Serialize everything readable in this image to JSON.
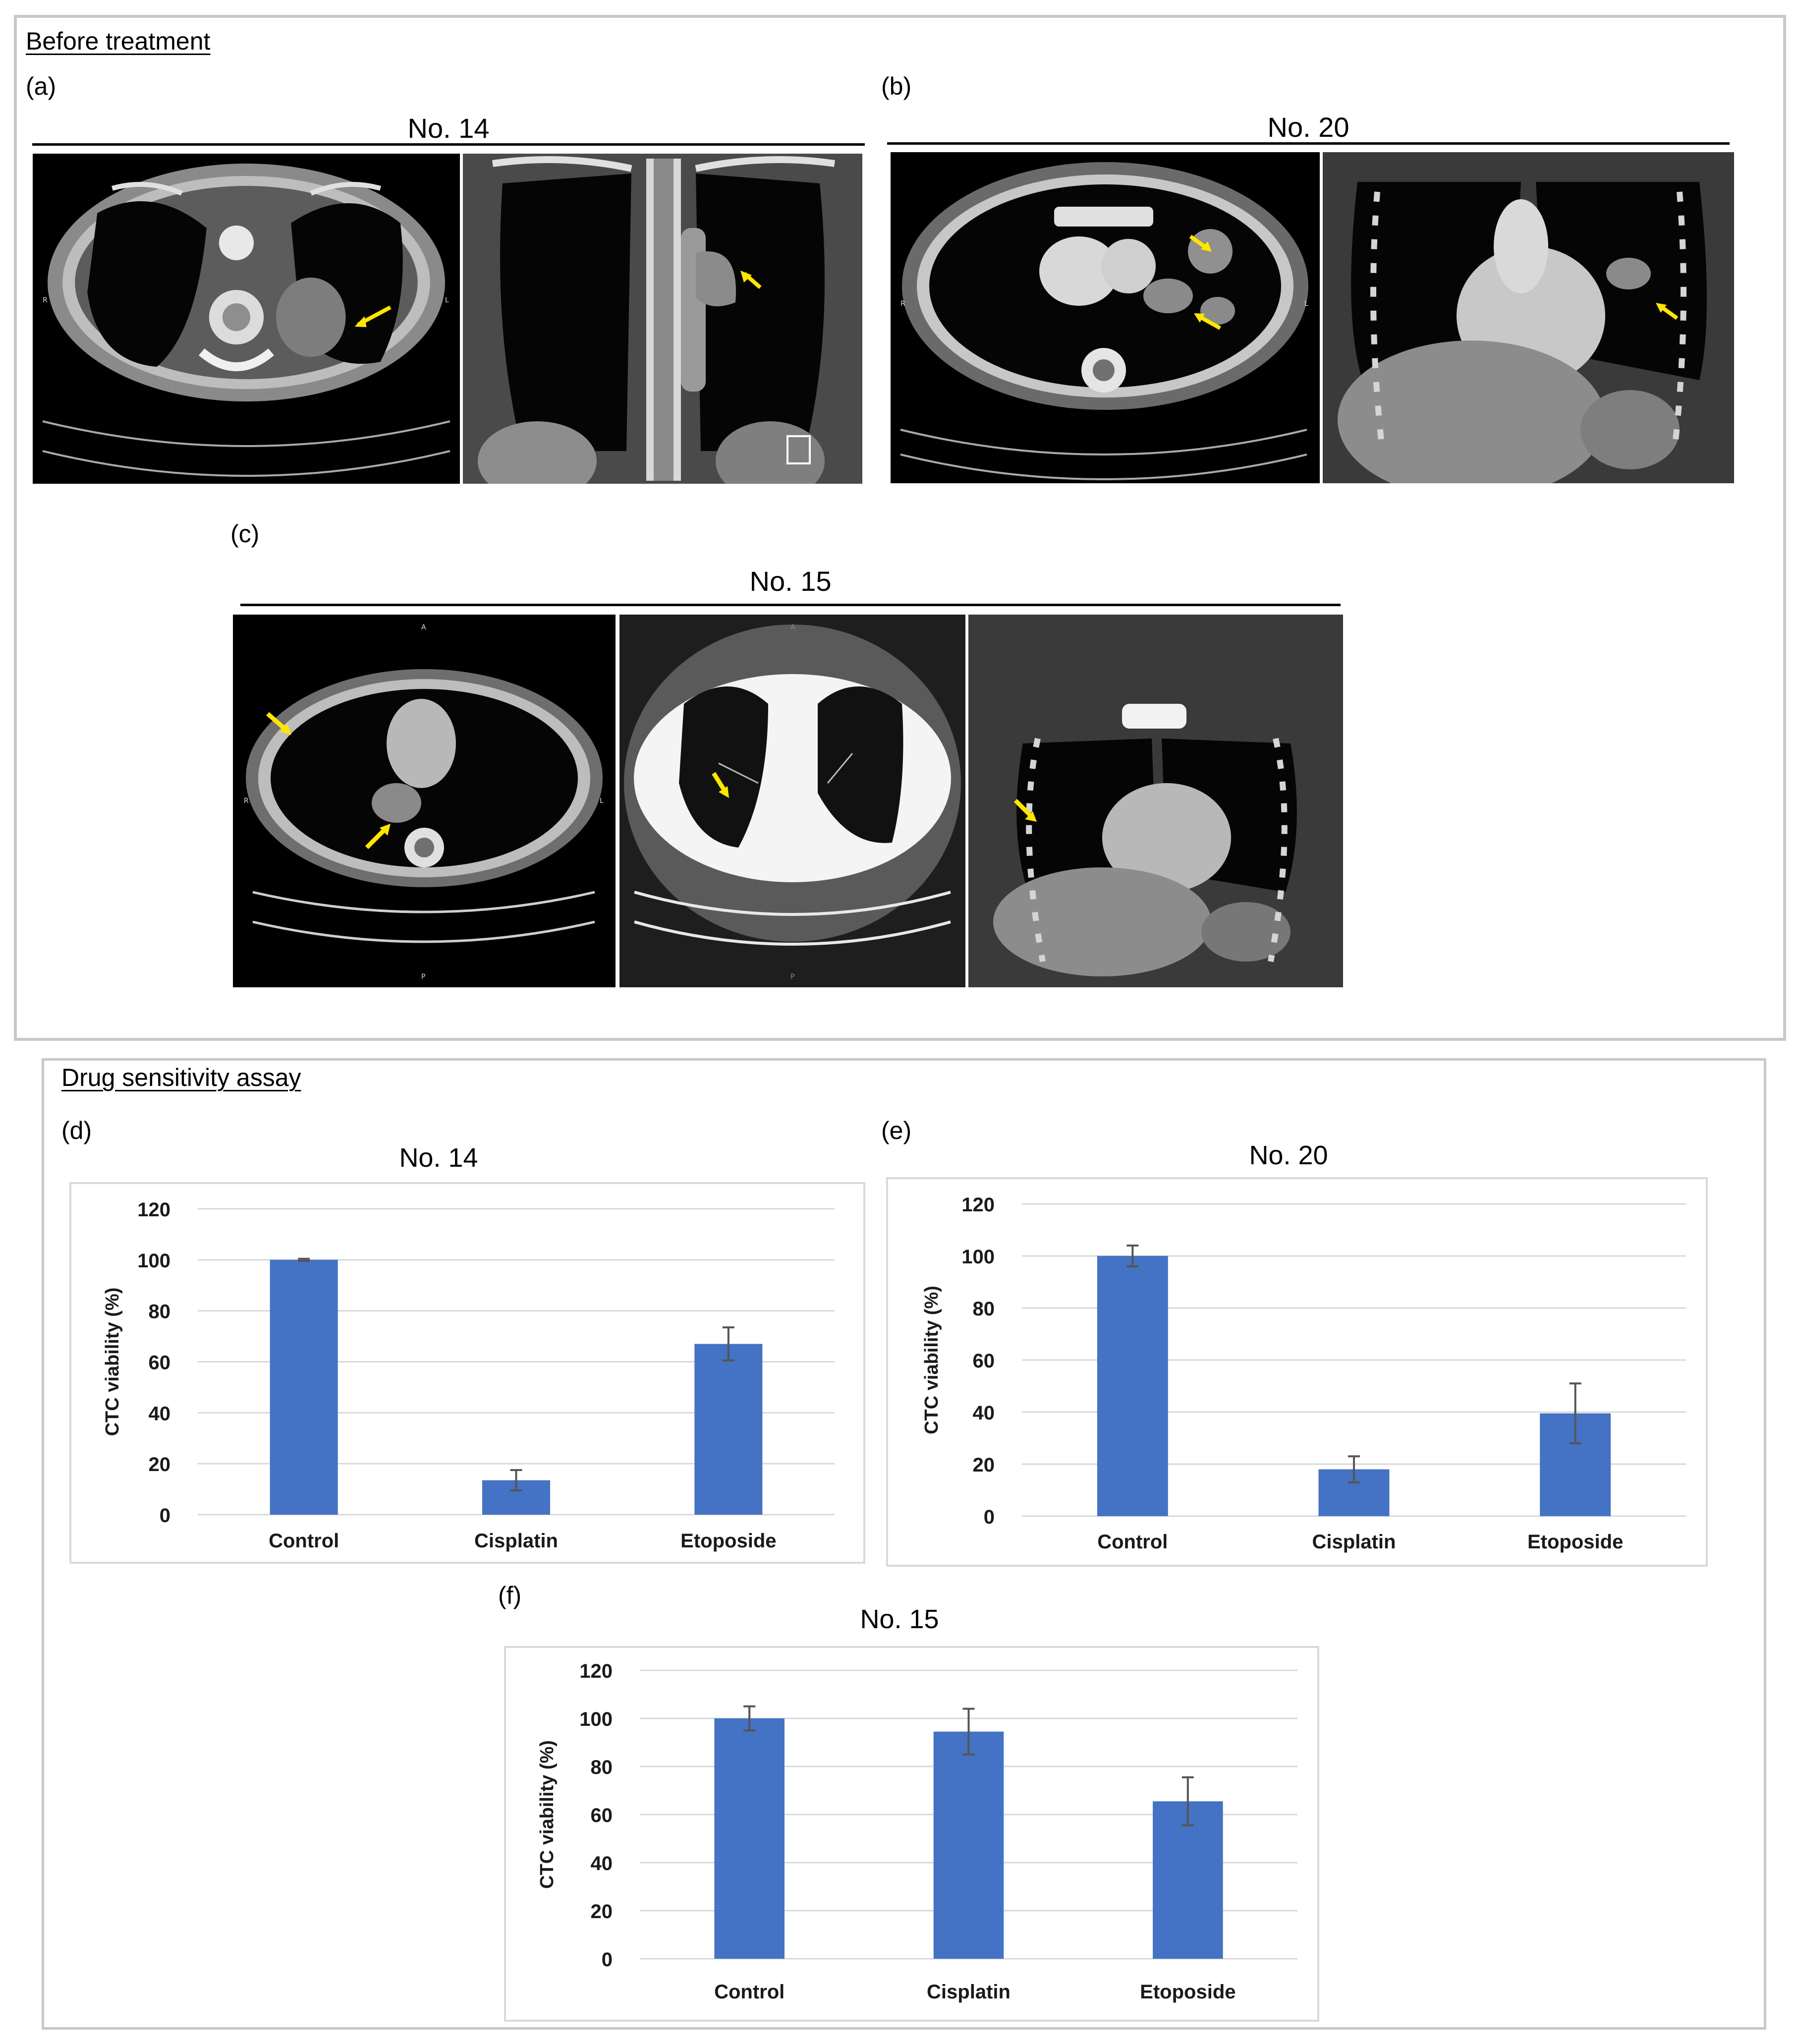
{
  "section_before": "Before treatment",
  "section_assay": "Drug sensitivity assay",
  "panels": {
    "a": {
      "label": "(a)",
      "case": "No. 14",
      "orient": [
        "R",
        "L"
      ]
    },
    "b": {
      "label": "(b)",
      "case": "No. 20",
      "orient": [
        "R",
        "L"
      ]
    },
    "c": {
      "label": "(c)",
      "case": "No. 15",
      "orient": [
        "A",
        "R",
        "L",
        "P",
        "A",
        "P"
      ]
    },
    "d": {
      "label": "(d)"
    },
    "e": {
      "label": "(e)"
    },
    "f": {
      "label": "(f)"
    }
  },
  "colors": {
    "bar": "#4472C4",
    "arrow": "#FFE600",
    "grid": "#d9d9d9"
  },
  "chart_data": [
    {
      "type": "bar",
      "title": "No. 14",
      "ylabel": "CTC viability (%)",
      "categories": [
        "Control",
        "Cisplatin",
        "Etoposide"
      ],
      "values": [
        100,
        13.5,
        67
      ],
      "errors": [
        0.4,
        4,
        6.5
      ],
      "ylim": [
        0,
        120
      ],
      "yticks": [
        "0",
        "20",
        "40",
        "60",
        "80",
        "100",
        "120"
      ],
      "grid": true
    },
    {
      "type": "bar",
      "title": "No. 20",
      "ylabel": "CTC viability (%)",
      "categories": [
        "Control",
        "Cisplatin",
        "Etoposide"
      ],
      "values": [
        100,
        18,
        39.5
      ],
      "errors": [
        4,
        5,
        11.5
      ],
      "ylim": [
        0,
        120
      ],
      "yticks": [
        "0",
        "20",
        "40",
        "60",
        "80",
        "100",
        "120"
      ],
      "grid": true
    },
    {
      "type": "bar",
      "title": "No. 15",
      "ylabel": "CTC viability (%)",
      "categories": [
        "Control",
        "Cisplatin",
        "Etoposide"
      ],
      "values": [
        100,
        94.5,
        65.5
      ],
      "errors": [
        5,
        9.5,
        10
      ],
      "ylim": [
        0,
        120
      ],
      "yticks": [
        "0",
        "20",
        "40",
        "60",
        "80",
        "100",
        "120"
      ],
      "grid": true
    }
  ]
}
